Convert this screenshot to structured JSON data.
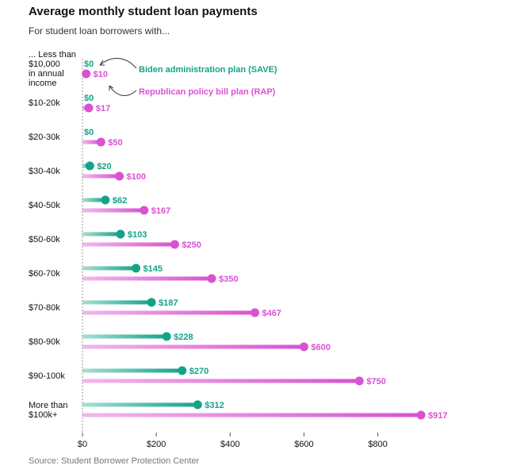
{
  "header": {
    "title": "Average monthly student loan payments",
    "subtitle": "For student loan borrowers with...",
    "source": "Source: Student Borrower Protection Center"
  },
  "colors": {
    "save": "#15a388",
    "rap": "#d952d2",
    "save_light": "#a7e0d2",
    "rap_light": "#f1b8ec",
    "axis": "#999999"
  },
  "annotations": {
    "save": "Biden administration plan (SAVE)",
    "rap": "Republican policy bill plan (RAP)"
  },
  "chart_data": {
    "type": "bar",
    "title": "Average monthly student loan payments",
    "subtitle": "For student loan borrowers with...",
    "categories": [
      [
        "... Less than",
        "$10,000",
        "in annual",
        "income"
      ],
      [
        "$10-20k"
      ],
      [
        "$20-30k"
      ],
      [
        "$30-40k"
      ],
      [
        "$40-50k"
      ],
      [
        "$50-60k"
      ],
      [
        "$60-70k"
      ],
      [
        "$70-80k"
      ],
      [
        "$80-90k"
      ],
      [
        "$90-100k"
      ],
      [
        "More than",
        "$100k+"
      ]
    ],
    "series": [
      {
        "name": "Biden administration plan (SAVE)",
        "values": [
          0,
          0,
          0,
          20,
          62,
          103,
          145,
          187,
          228,
          270,
          312
        ],
        "labels": [
          "$0",
          "$0",
          "$0",
          "$20",
          "$62",
          "$103",
          "$145",
          "$187",
          "$228",
          "$270",
          "$312"
        ]
      },
      {
        "name": "Republican policy bill plan (RAP)",
        "values": [
          10,
          17,
          50,
          100,
          167,
          250,
          350,
          467,
          600,
          750,
          917
        ],
        "labels": [
          "$10",
          "$17",
          "$50",
          "$100",
          "$167",
          "$250",
          "$350",
          "$467",
          "$600",
          "$750",
          "$917"
        ]
      }
    ],
    "xticks": [
      0,
      200,
      400,
      600,
      800
    ],
    "xtick_labels": [
      "$0",
      "$200",
      "$400",
      "$600",
      "$800"
    ],
    "xlim": [
      0,
      917
    ],
    "xlabel": "",
    "ylabel": ""
  }
}
